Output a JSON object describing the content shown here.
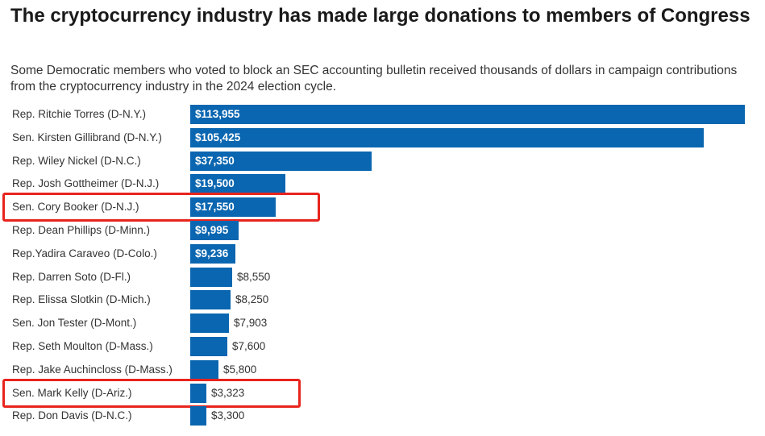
{
  "chart_data": {
    "type": "bar",
    "orientation": "horizontal",
    "title": "The cryptocurrency industry has made large donations to members of Congress",
    "subtitle": "Some Democratic members who voted to block an SEC accounting bulletin received thousands of dollars in campaign contributions from the cryptocurrency industry in the 2024 election cycle.",
    "xlabel": "",
    "ylabel": "",
    "xlim": [
      0,
      113955
    ],
    "grid": false,
    "bar_color": "#0a66b0",
    "highlight_color": "#e8241d",
    "categories": [
      "Rep. Ritchie Torres (D-N.Y.)",
      "Sen. Kirsten Gillibrand (D-N.Y.)",
      "Rep. Wiley Nickel (D-N.C.)",
      "Rep. Josh Gottheimer (D-N.J.)",
      "Sen. Cory Booker (D-N.J.)",
      "Rep. Dean Phillips (D-Minn.)",
      "Rep.Yadira Caraveo (D-Colo.)",
      "Rep. Darren Soto (D-Fl.)",
      "Rep. Elissa Slotkin (D-Mich.)",
      "Sen. Jon Tester (D-Mont.)",
      "Rep. Seth Moulton (D-Mass.)",
      "Rep. Jake Auchincloss (D-Mass.)",
      "Sen. Mark Kelly (D-Ariz.)",
      "Rep. Don Davis (D-N.C.)"
    ],
    "values": [
      113955,
      105425,
      37350,
      19500,
      17550,
      9995,
      9236,
      8550,
      8250,
      7903,
      7600,
      5800,
      3323,
      3300
    ],
    "value_labels": [
      "$113,955",
      "$105,425",
      "$37,350",
      "$19,500",
      "$17,550",
      "$9,995",
      "$9,236",
      "$8,550",
      "$8,250",
      "$7,903",
      "$7,600",
      "$5,800",
      "$3,323",
      "$3,300"
    ],
    "highlighted": [
      "Sen. Cory Booker (D-N.J.)",
      "Sen. Mark Kelly (D-Ariz.)"
    ]
  }
}
